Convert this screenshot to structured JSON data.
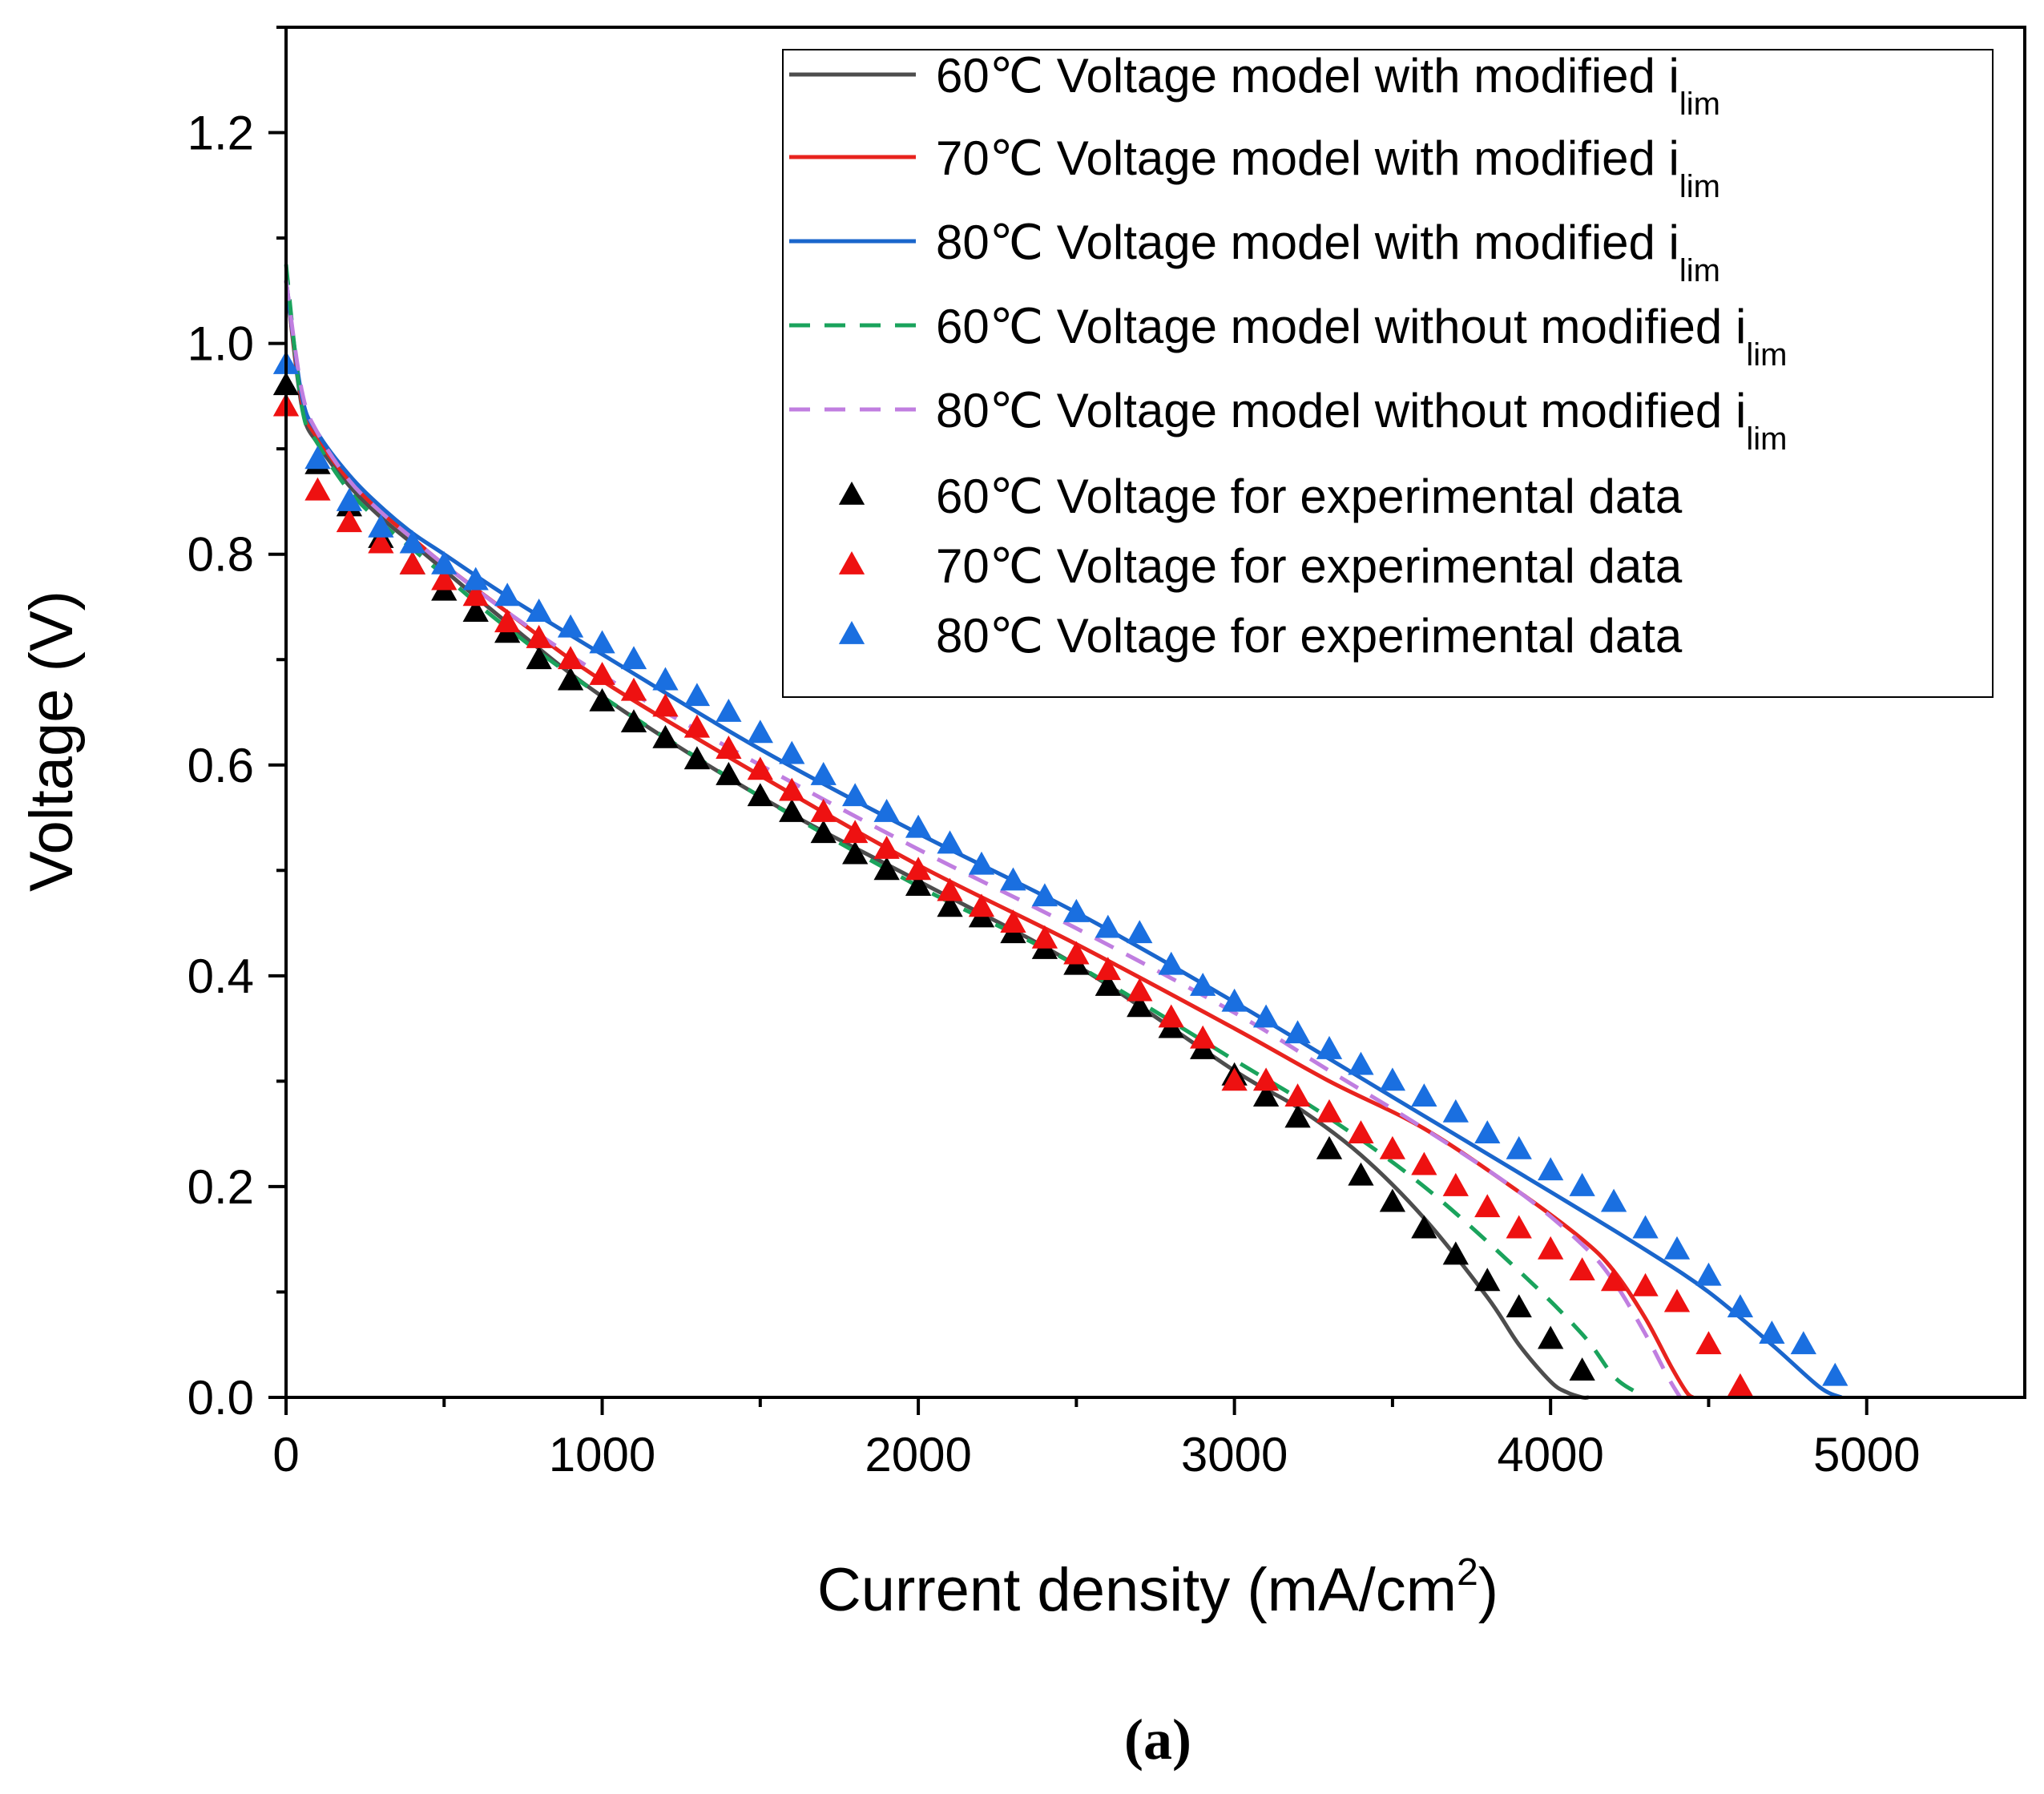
{
  "chart_data": {
    "type": "line",
    "xlabel_main": "Current density (mA/cm",
    "xlabel_sup": "2",
    "xlabel_tail": ")",
    "ylabel": "Voltage (V)",
    "xlim": [
      0,
      5500
    ],
    "ylim": [
      0,
      1.3
    ],
    "x_ticks": [
      0,
      1000,
      2000,
      3000,
      4000,
      5000
    ],
    "x_tick_labels": [
      "0",
      "1000",
      "2000",
      "3000",
      "4000",
      "5000"
    ],
    "y_ticks": [
      0.0,
      0.2,
      0.4,
      0.6,
      0.8,
      1.0,
      1.2
    ],
    "y_tick_labels": [
      "0.0",
      "0.2",
      "0.4",
      "0.6",
      "0.8",
      "1.0",
      "1.2"
    ],
    "legend_position": "top-right",
    "caption": "(a)",
    "series": [
      {
        "name": "60℃ Voltage model with modified i",
        "sub": "lim",
        "kind": "line",
        "color": "#4d4d4d",
        "x": [
          0,
          50,
          100,
          200,
          300,
          400,
          500,
          700,
          1000,
          1500,
          2000,
          2500,
          3000,
          3200,
          3400,
          3600,
          3800,
          3900,
          4000,
          4050,
          4100,
          4120
        ],
        "y": [
          1.06,
          0.94,
          0.905,
          0.865,
          0.835,
          0.81,
          0.785,
          0.735,
          0.665,
          0.57,
          0.49,
          0.41,
          0.31,
          0.275,
          0.23,
          0.17,
          0.095,
          0.05,
          0.015,
          0.005,
          0.0,
          0.0
        ]
      },
      {
        "name": "70℃ Voltage model with modified i",
        "sub": "lim",
        "kind": "line",
        "color": "#e8231e",
        "x": [
          0,
          50,
          100,
          200,
          300,
          400,
          500,
          700,
          1000,
          1500,
          2000,
          2500,
          3000,
          3300,
          3600,
          3900,
          4100,
          4200,
          4300,
          4380,
          4430,
          4450
        ],
        "y": [
          1.06,
          0.945,
          0.91,
          0.87,
          0.84,
          0.815,
          0.79,
          0.745,
          0.68,
          0.59,
          0.505,
          0.43,
          0.35,
          0.3,
          0.255,
          0.195,
          0.15,
          0.12,
          0.075,
          0.03,
          0.005,
          0.0
        ]
      },
      {
        "name": "80℃ Voltage model with modified i",
        "sub": "lim",
        "kind": "line",
        "color": "#1a66cc",
        "x": [
          0,
          50,
          100,
          200,
          300,
          400,
          500,
          700,
          1000,
          1500,
          2000,
          2500,
          3000,
          3500,
          4000,
          4300,
          4500,
          4700,
          4850,
          4920
        ],
        "y": [
          1.06,
          0.95,
          0.915,
          0.875,
          0.845,
          0.82,
          0.8,
          0.76,
          0.705,
          0.615,
          0.535,
          0.46,
          0.375,
          0.285,
          0.195,
          0.14,
          0.1,
          0.05,
          0.01,
          0.0
        ]
      },
      {
        "name": "60℃ Voltage model without modified i",
        "sub": "lim",
        "kind": "dashed",
        "color": "#1aa35c",
        "x": [
          0,
          50,
          100,
          200,
          300,
          400,
          500,
          700,
          1000,
          1500,
          2000,
          2500,
          3000,
          3300,
          3600,
          3900,
          4100,
          4200,
          4270,
          4300
        ],
        "y": [
          1.075,
          0.94,
          0.905,
          0.86,
          0.83,
          0.805,
          0.78,
          0.73,
          0.665,
          0.57,
          0.485,
          0.41,
          0.32,
          0.265,
          0.2,
          0.12,
          0.06,
          0.02,
          0.005,
          0.0
        ]
      },
      {
        "name": "80℃ Voltage model without modified i",
        "sub": "lim",
        "kind": "dashed",
        "color": "#c07ee0",
        "x": [
          0,
          50,
          100,
          200,
          300,
          400,
          500,
          700,
          1000,
          1500,
          2000,
          2500,
          3000,
          3300,
          3600,
          3900,
          4100,
          4200,
          4300,
          4370,
          4410
        ],
        "y": [
          1.06,
          0.955,
          0.915,
          0.87,
          0.84,
          0.815,
          0.79,
          0.745,
          0.685,
          0.6,
          0.52,
          0.445,
          0.365,
          0.31,
          0.255,
          0.195,
          0.145,
          0.11,
          0.06,
          0.02,
          0.0
        ]
      },
      {
        "name": "60℃ Voltage for experimental data",
        "kind": "markers",
        "color": "#000000",
        "x": [
          0,
          100,
          200,
          300,
          400,
          500,
          600,
          700,
          800,
          900,
          1000,
          1100,
          1200,
          1300,
          1400,
          1500,
          1600,
          1700,
          1800,
          1900,
          2000,
          2100,
          2200,
          2300,
          2400,
          2500,
          2600,
          2700,
          2800,
          2900,
          3000,
          3100,
          3200,
          3300,
          3400,
          3500,
          3600,
          3700,
          3800,
          3900,
          4000,
          4100
        ],
        "y": [
          0.96,
          0.885,
          0.845,
          0.815,
          0.79,
          0.765,
          0.745,
          0.725,
          0.7,
          0.68,
          0.66,
          0.64,
          0.625,
          0.605,
          0.59,
          0.57,
          0.555,
          0.535,
          0.515,
          0.5,
          0.485,
          0.465,
          0.455,
          0.44,
          0.425,
          0.41,
          0.39,
          0.37,
          0.35,
          0.33,
          0.305,
          0.285,
          0.265,
          0.235,
          0.21,
          0.185,
          0.16,
          0.135,
          0.11,
          0.085,
          0.055,
          0.025
        ]
      },
      {
        "name": "70℃ Voltage for experimental data",
        "kind": "markers",
        "color": "#ee1111",
        "x": [
          0,
          100,
          200,
          300,
          400,
          500,
          600,
          700,
          800,
          900,
          1000,
          1100,
          1200,
          1300,
          1400,
          1500,
          1600,
          1700,
          1800,
          1900,
          2000,
          2100,
          2200,
          2300,
          2400,
          2500,
          2600,
          2700,
          2800,
          2900,
          3000,
          3100,
          3200,
          3300,
          3400,
          3500,
          3600,
          3700,
          3800,
          3900,
          4000,
          4100,
          4200,
          4300,
          4400,
          4500,
          4600
        ],
        "y": [
          0.94,
          0.86,
          0.83,
          0.81,
          0.79,
          0.775,
          0.76,
          0.735,
          0.72,
          0.7,
          0.685,
          0.67,
          0.655,
          0.635,
          0.615,
          0.595,
          0.575,
          0.555,
          0.535,
          0.52,
          0.5,
          0.48,
          0.465,
          0.45,
          0.435,
          0.42,
          0.405,
          0.385,
          0.36,
          0.34,
          0.3,
          0.3,
          0.285,
          0.27,
          0.25,
          0.235,
          0.22,
          0.2,
          0.18,
          0.16,
          0.14,
          0.12,
          0.11,
          0.105,
          0.09,
          0.05,
          0.01
        ]
      },
      {
        "name": "80℃ Voltage for experimental data",
        "kind": "markers",
        "color": "#1a6fe0",
        "x": [
          0,
          100,
          200,
          300,
          400,
          500,
          600,
          700,
          800,
          900,
          1000,
          1100,
          1200,
          1300,
          1400,
          1500,
          1600,
          1700,
          1800,
          1900,
          2000,
          2100,
          2200,
          2300,
          2400,
          2500,
          2600,
          2700,
          2800,
          2900,
          3000,
          3100,
          3200,
          3300,
          3400,
          3500,
          3600,
          3700,
          3800,
          3900,
          4000,
          4100,
          4200,
          4300,
          4400,
          4500,
          4600,
          4700,
          4800,
          4900
        ],
        "y": [
          0.98,
          0.89,
          0.85,
          0.825,
          0.81,
          0.79,
          0.775,
          0.76,
          0.745,
          0.73,
          0.715,
          0.7,
          0.68,
          0.665,
          0.65,
          0.63,
          0.61,
          0.59,
          0.57,
          0.555,
          0.54,
          0.525,
          0.505,
          0.49,
          0.475,
          0.46,
          0.445,
          0.44,
          0.41,
          0.39,
          0.375,
          0.36,
          0.345,
          0.33,
          0.315,
          0.3,
          0.285,
          0.27,
          0.25,
          0.235,
          0.215,
          0.2,
          0.185,
          0.16,
          0.14,
          0.115,
          0.085,
          0.06,
          0.05,
          0.02
        ]
      }
    ]
  }
}
